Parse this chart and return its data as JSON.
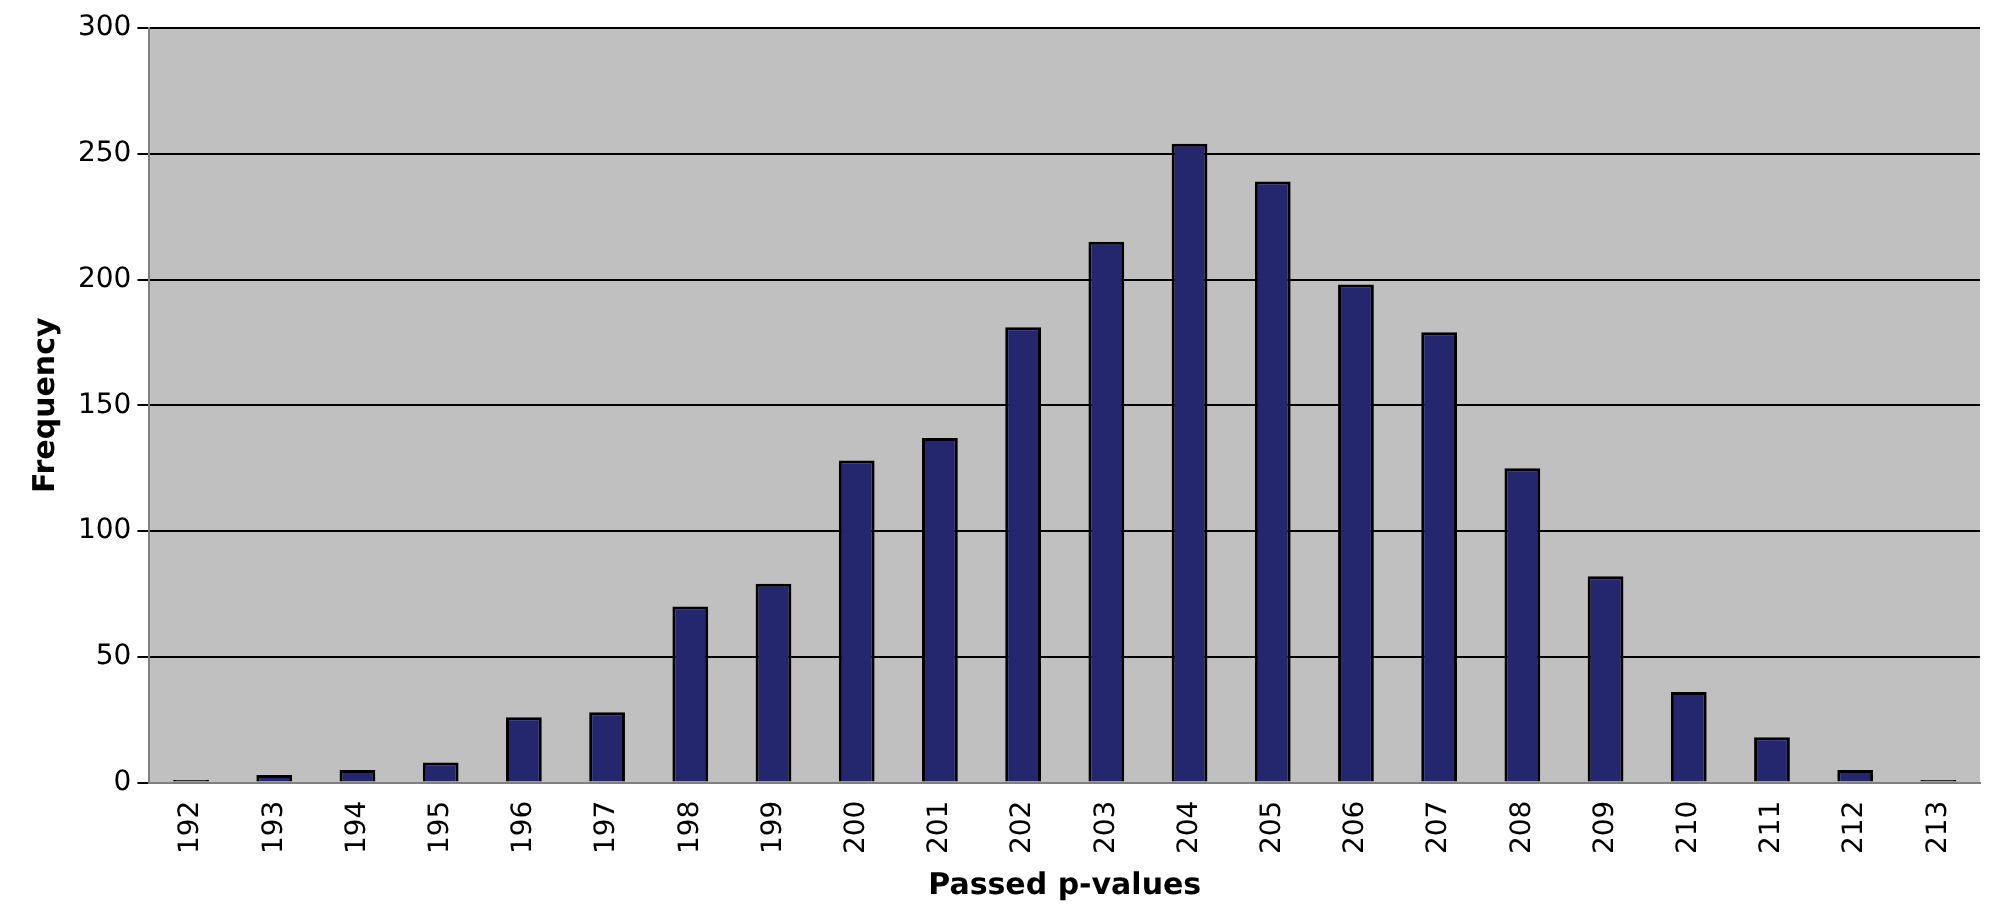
{
  "chart_data": {
    "type": "bar",
    "xlabel": "Passed p-values",
    "ylabel": "Frequency",
    "categories": [
      "192",
      "193",
      "194",
      "195",
      "196",
      "197",
      "198",
      "199",
      "200",
      "201",
      "202",
      "203",
      "204",
      "205",
      "206",
      "207",
      "208",
      "209",
      "210",
      "211",
      "212",
      "213"
    ],
    "values": [
      1,
      3,
      5,
      8,
      26,
      28,
      70,
      79,
      128,
      137,
      181,
      215,
      254,
      239,
      198,
      179,
      125,
      82,
      36,
      18,
      5,
      1
    ],
    "color": "#24276e",
    "ylim": [
      0,
      300
    ],
    "yticks": [
      0,
      50,
      100,
      150,
      200,
      250,
      300
    ],
    "grid": "y",
    "legend": false
  }
}
